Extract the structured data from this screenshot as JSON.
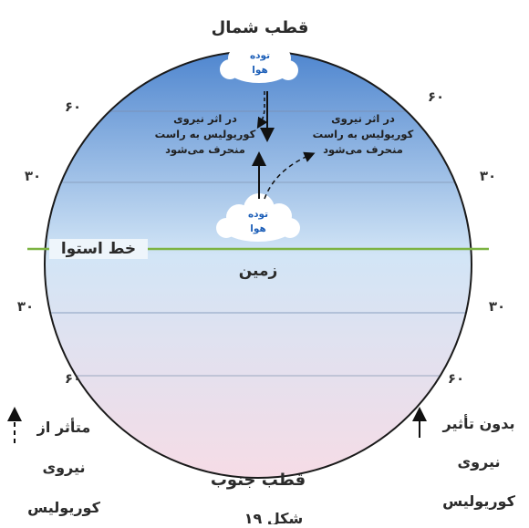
{
  "labels": {
    "north_pole": "قطب شمال",
    "south_pole": "قطب جنوب",
    "equator": "خط استوا",
    "earth": "زمین",
    "figure_caption": "شکل ۱۹"
  },
  "clouds": {
    "top": [
      "توده",
      "هوا"
    ],
    "middle": [
      "توده",
      "هوا"
    ]
  },
  "notes": {
    "left": [
      "در اثر نیروی",
      "کوریولیس به راست",
      "منحرف می‌شود"
    ],
    "right": [
      "در اثر نیروی",
      "کوریولیس به راست",
      "منحرف می‌شود"
    ]
  },
  "latitudes": {
    "n60_left": "۶۰",
    "n60_right": "۶۰",
    "n30_left": "۳۰",
    "n30_right": "۳۰",
    "s30_left": "۳۰",
    "s30_right": "۳۰",
    "s60_left": "۶۰",
    "s60_right": "۶۰"
  },
  "legend": {
    "affected": [
      "متأثر از",
      "نیروی",
      "کوریولیس"
    ],
    "not_affected": [
      "بدون تأثیر",
      "نیروی",
      "کوریولیس"
    ]
  },
  "colors": {
    "sky_top": "#4f86cf",
    "sky_mid": "#d2e5f6",
    "sky_bottom": "#f6dce6",
    "equator": "#7cb342"
  }
}
